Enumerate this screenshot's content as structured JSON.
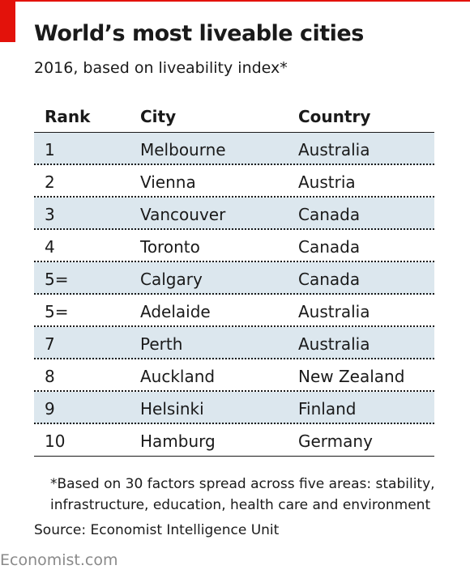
{
  "colors": {
    "accent": "#e3120b",
    "row_shade": "#dce7ee",
    "text": "#1a1a1a",
    "brand": "#8a8a8a"
  },
  "header": {
    "title": "World’s most liveable cities",
    "subtitle": "2016, based on liveability index*"
  },
  "chart_data": {
    "type": "table",
    "title": "World’s most liveable cities",
    "subtitle": "2016, based on liveability index*",
    "columns": [
      "Rank",
      "City",
      "Country"
    ],
    "rows": [
      {
        "rank": "1",
        "city": "Melbourne",
        "country": "Australia"
      },
      {
        "rank": "2",
        "city": "Vienna",
        "country": "Austria"
      },
      {
        "rank": "3",
        "city": "Vancouver",
        "country": "Canada"
      },
      {
        "rank": "4",
        "city": "Toronto",
        "country": "Canada"
      },
      {
        "rank": "5=",
        "city": "Calgary",
        "country": "Canada"
      },
      {
        "rank": "5=",
        "city": "Adelaide",
        "country": "Australia"
      },
      {
        "rank": "7",
        "city": "Perth",
        "country": "Australia"
      },
      {
        "rank": "8",
        "city": "Auckland",
        "country": "New Zealand"
      },
      {
        "rank": "9",
        "city": "Helsinki",
        "country": "Finland"
      },
      {
        "rank": "10",
        "city": "Hamburg",
        "country": "Germany"
      }
    ]
  },
  "footer": {
    "footnote_line1": "*Based on 30 factors spread across five areas: stability,",
    "footnote_line2": "infrastructure, education, health care and environment",
    "source": "Source: Economist Intelligence Unit",
    "brand": "Economist.com"
  }
}
